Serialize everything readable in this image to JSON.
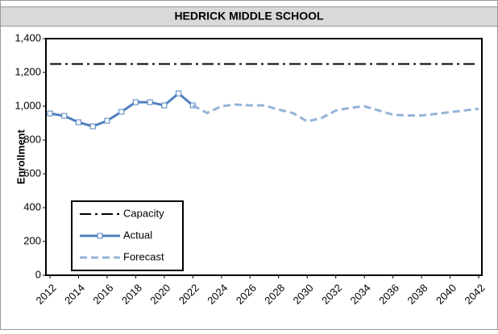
{
  "chart_data": {
    "type": "line",
    "title": "HEDRICK MIDDLE SCHOOL",
    "ylabel": "Enrollment",
    "x": [
      2012,
      2013,
      2014,
      2015,
      2016,
      2017,
      2018,
      2019,
      2020,
      2021,
      2022,
      2023,
      2024,
      2025,
      2026,
      2027,
      2028,
      2029,
      2030,
      2031,
      2032,
      2033,
      2034,
      2035,
      2036,
      2037,
      2038,
      2039,
      2040,
      2041,
      2042
    ],
    "xlim": [
      2012,
      2042
    ],
    "xticks": [
      2012,
      2014,
      2016,
      2018,
      2020,
      2022,
      2024,
      2026,
      2028,
      2030,
      2032,
      2034,
      2036,
      2038,
      2040,
      2042
    ],
    "ylim": [
      0,
      1400
    ],
    "yticks": [
      0,
      200,
      400,
      600,
      800,
      {
        "value": 1000,
        "label": "1,000"
      },
      {
        "value": 1200,
        "label": "1,200"
      },
      {
        "value": 1400,
        "label": "1,400"
      }
    ],
    "grid": false,
    "legend": "lower left",
    "series": [
      {
        "name": "Capacity",
        "color": "#000000",
        "line_style": "dashdot",
        "markers": false,
        "values": [
          1250,
          1250,
          1250,
          1250,
          1250,
          1250,
          1250,
          1250,
          1250,
          1250,
          1250,
          1250,
          1250,
          1250,
          1250,
          1250,
          1250,
          1250,
          1250,
          1250,
          1250,
          1250,
          1250,
          1250,
          1250,
          1250,
          1250,
          1250,
          1250,
          1250,
          1250
        ]
      },
      {
        "name": "Actual",
        "color": "#4f81bd",
        "line_style": "solid",
        "markers": true,
        "values": [
          957,
          943,
          905,
          881,
          914,
          967,
          1024,
          1024,
          1005,
          1076,
          1005,
          null,
          null,
          null,
          null,
          null,
          null,
          null,
          null,
          null,
          null,
          null,
          null,
          null,
          null,
          null,
          null,
          null,
          null,
          null,
          null
        ]
      },
      {
        "name": "Forecast",
        "color": "#95b3d7",
        "line_style": "dashed",
        "markers": false,
        "values": [
          null,
          null,
          null,
          null,
          null,
          null,
          null,
          null,
          null,
          null,
          1005,
          960,
          1000,
          1010,
          1005,
          1005,
          980,
          960,
          910,
          930,
          975,
          990,
          1000,
          975,
          950,
          945,
          945,
          955,
          965,
          975,
          985
        ]
      }
    ]
  }
}
